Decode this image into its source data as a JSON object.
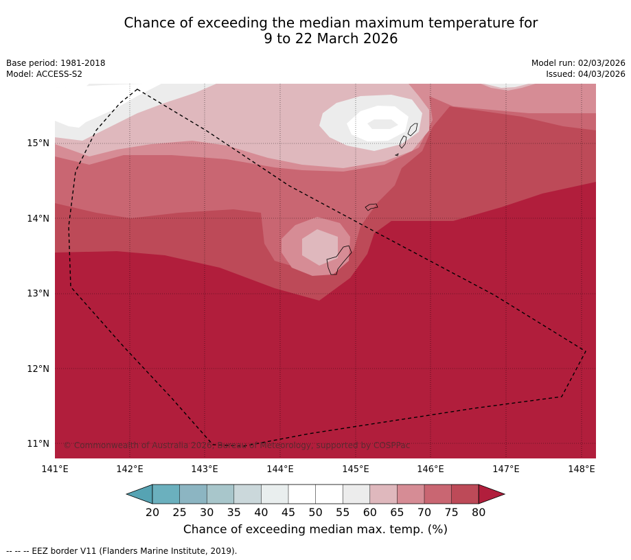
{
  "title_line1": "Chance of exceeding the median maximum temperature for",
  "title_line2": "9 to 22 March 2026",
  "base_period": "Base period: 1981-2018",
  "model": "Model: ACCESS-S2",
  "model_run": "Model run: 02/03/2026",
  "issued": "Issued: 04/03/2026",
  "copyright": "© Commonwealth of Australia 2026, Bureau of Meteorology, supported by COSPPac",
  "colorbar_label": "Chance of exceeding median max. temp. (%)",
  "footnote": "--  --  -- EEZ border V11 (Flanders Marine Institute, 2019).",
  "lon_labels": [
    "141°E",
    "142°E",
    "143°E",
    "144°E",
    "145°E",
    "146°E",
    "147°E",
    "148°E"
  ],
  "lat_labels": [
    "15°N",
    "14°N",
    "13°N",
    "12°N",
    "11°N"
  ],
  "colorbar": {
    "ticks": [
      "20",
      "25",
      "30",
      "35",
      "40",
      "45",
      "50",
      "55",
      "60",
      "65",
      "70",
      "75",
      "80"
    ],
    "colors": [
      "#56a3b3",
      "#6bb0be",
      "#8cb5c2",
      "#a8c6cb",
      "#cbd8db",
      "#e9eeee",
      "#ffffff",
      "#ffffff",
      "#ececec",
      "#dfb8bd",
      "#d68c95",
      "#c96672",
      "#bd4a58",
      "#b11e3c"
    ]
  },
  "fill_colors": {
    "c55": "#ffffff",
    "c60": "#ececec",
    "c65": "#dfb8bd",
    "c70": "#d68c95",
    "c75": "#c96672",
    "c80": "#bd4a58",
    "c85": "#b11e3c"
  }
}
